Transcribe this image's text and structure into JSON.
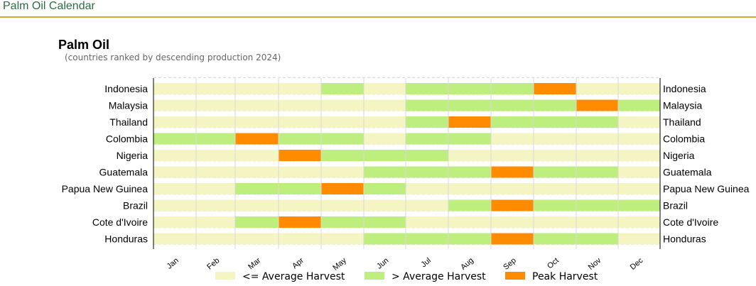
{
  "page": {
    "title": "Palm Oil Calendar"
  },
  "colors": {
    "below_avg": "#f5f5c4",
    "above_avg": "#bdee7e",
    "peak": "#ff8c00"
  },
  "chart_data": {
    "type": "heatmap",
    "title": "Palm Oil",
    "subtitle": "(countries ranked by descending production 2024)",
    "months": [
      "Jan",
      "Feb",
      "Mar",
      "Apr",
      "May",
      "Jun",
      "Jul",
      "Aug",
      "Sep",
      "Oct",
      "Nov",
      "Dec"
    ],
    "legend": [
      {
        "key": "L",
        "label": "<= Average Harvest"
      },
      {
        "key": "A",
        "label": "> Average Harvest"
      },
      {
        "key": "P",
        "label": "Peak Harvest"
      }
    ],
    "rows": [
      {
        "country": "Indonesia",
        "levels": [
          "L",
          "L",
          "L",
          "L",
          "A",
          "L",
          "A",
          "A",
          "A",
          "P",
          "L",
          "L"
        ]
      },
      {
        "country": "Malaysia",
        "levels": [
          "L",
          "L",
          "L",
          "L",
          "L",
          "L",
          "A",
          "A",
          "A",
          "A",
          "P",
          "A"
        ]
      },
      {
        "country": "Thailand",
        "levels": [
          "L",
          "L",
          "L",
          "L",
          "L",
          "L",
          "A",
          "P",
          "A",
          "A",
          "A",
          "L"
        ]
      },
      {
        "country": "Colombia",
        "levels": [
          "A",
          "A",
          "P",
          "A",
          "A",
          "L",
          "A",
          "A",
          "L",
          "L",
          "L",
          "L"
        ]
      },
      {
        "country": "Nigeria",
        "levels": [
          "L",
          "L",
          "L",
          "P",
          "A",
          "A",
          "A",
          "L",
          "L",
          "L",
          "L",
          "L"
        ]
      },
      {
        "country": "Guatemala",
        "levels": [
          "L",
          "L",
          "L",
          "L",
          "L",
          "A",
          "A",
          "A",
          "P",
          "A",
          "A",
          "L"
        ]
      },
      {
        "country": "Papua New Guinea",
        "levels": [
          "L",
          "L",
          "A",
          "A",
          "P",
          "A",
          "L",
          "L",
          "L",
          "L",
          "L",
          "L"
        ]
      },
      {
        "country": "Brazil",
        "levels": [
          "L",
          "L",
          "L",
          "L",
          "L",
          "L",
          "L",
          "A",
          "P",
          "A",
          "A",
          "A"
        ]
      },
      {
        "country": "Cote d'Ivoire",
        "levels": [
          "L",
          "L",
          "A",
          "P",
          "A",
          "A",
          "L",
          "L",
          "L",
          "L",
          "L",
          "L"
        ]
      },
      {
        "country": "Honduras",
        "levels": [
          "L",
          "L",
          "L",
          "L",
          "L",
          "A",
          "A",
          "A",
          "P",
          "A",
          "A",
          "L"
        ]
      }
    ]
  }
}
